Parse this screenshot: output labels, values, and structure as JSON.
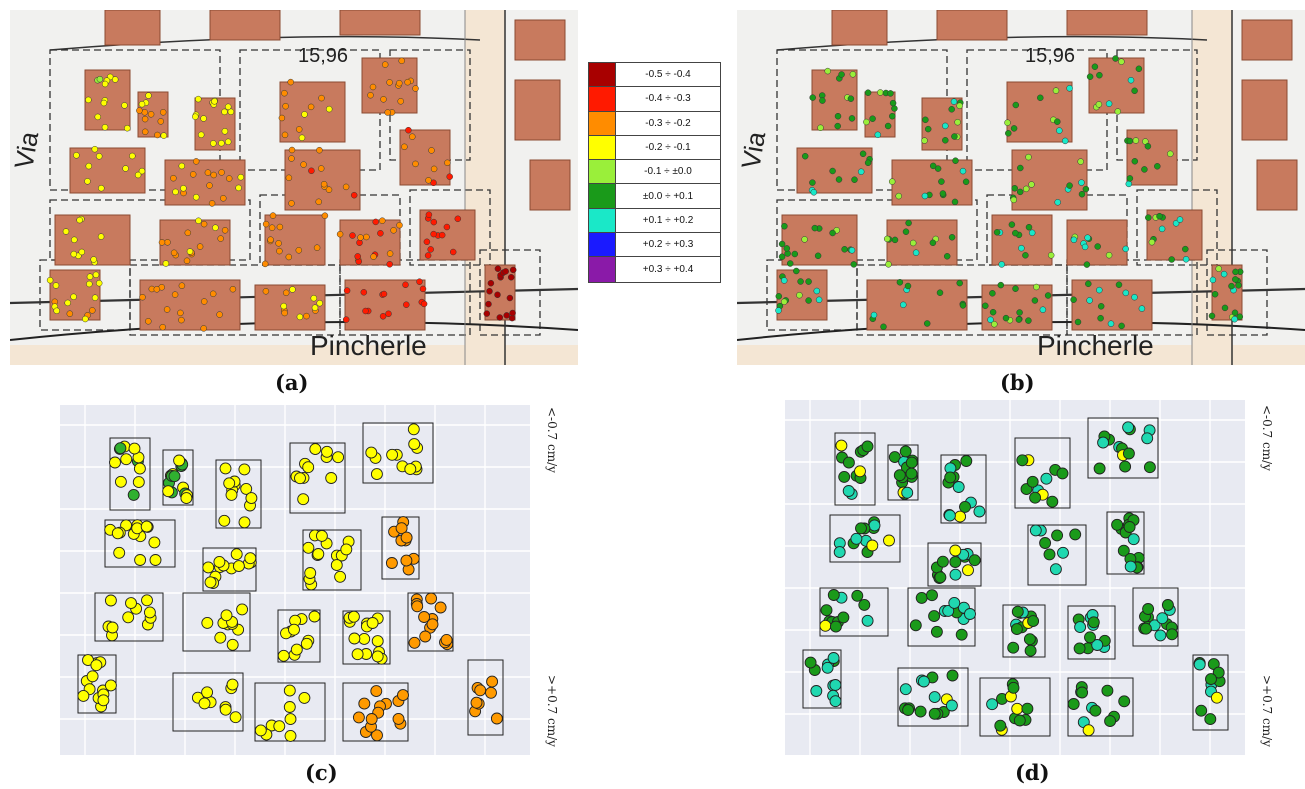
{
  "panels": {
    "a": {
      "label": "(a)"
    },
    "b": {
      "label": "(b)"
    },
    "c": {
      "label": "(c)"
    },
    "d": {
      "label": "(d)"
    }
  },
  "map": {
    "street_via": "Via",
    "street_pincherle": "Pincherle",
    "elevation": "15,96"
  },
  "legend": {
    "items": [
      {
        "label": "-0.5 ÷ -0.4",
        "color": "#a80000"
      },
      {
        "label": "-0.4 ÷ -0.3",
        "color": "#ff1a00"
      },
      {
        "label": "-0.3 ÷ -0.2",
        "color": "#ff8c00"
      },
      {
        "label": "-0.2 ÷ -0.1",
        "color": "#ffff00"
      },
      {
        "label": "-0.1 ÷ ±0.0",
        "color": "#9aef3a"
      },
      {
        "label": "±0.0 ÷ +0.1",
        "color": "#1a9a1a"
      },
      {
        "label": "+0.1 ÷ +0.2",
        "color": "#1ae8c8"
      },
      {
        "label": "+0.2 ÷ +0.3",
        "color": "#1a1aff"
      },
      {
        "label": "+0.3 ÷ +0.4",
        "color": "#8a1aa8"
      }
    ]
  },
  "colorbar": {
    "top_label": "<-0.7 cm/y",
    "bottom_label": ">+0.7 cm/y",
    "colors": [
      "#d40000",
      "#f02020",
      "#ff4a00",
      "#ff8c00",
      "#ffe000",
      "#ffff40",
      "#1a9a1a",
      "#30c030",
      "#20d8b0",
      "#40e0e0",
      "#40c0ff",
      "#2080ff",
      "#1040e0",
      "#0000a0"
    ]
  },
  "colors": {
    "building": "#c87a5e",
    "building_edge": "#8a4a32",
    "plot_bg": "#e8eaf2"
  }
}
